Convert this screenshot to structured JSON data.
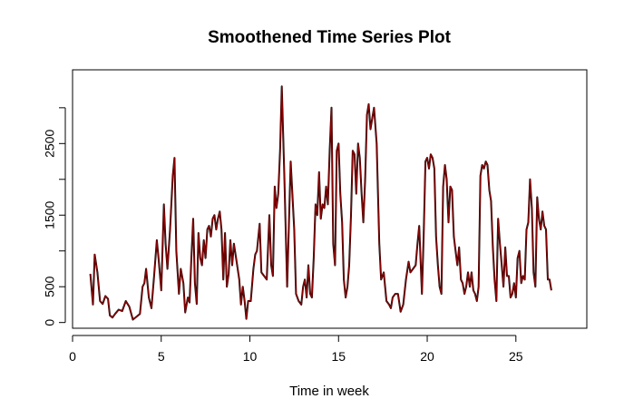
{
  "chart_data": {
    "type": "line",
    "title": "Smoothened Time Series Plot",
    "xlabel": "Time in week",
    "ylabel": "",
    "xlim": [
      0,
      29
    ],
    "ylim": [
      -80,
      3530
    ],
    "x_ticks": [
      0,
      5,
      10,
      15,
      20,
      25
    ],
    "y_ticks": [
      0,
      500,
      1500,
      2500
    ],
    "grid": false,
    "legend": "none",
    "series": [
      {
        "color_main": "#8b0000",
        "color_shadow": "#000000",
        "points": [
          [
            1.0,
            680
          ],
          [
            1.15,
            250
          ],
          [
            1.25,
            950
          ],
          [
            1.4,
            700
          ],
          [
            1.55,
            300
          ],
          [
            1.7,
            260
          ],
          [
            1.85,
            370
          ],
          [
            2.0,
            330
          ],
          [
            2.1,
            100
          ],
          [
            2.25,
            70
          ],
          [
            2.4,
            120
          ],
          [
            2.6,
            180
          ],
          [
            2.8,
            160
          ],
          [
            3.0,
            300
          ],
          [
            3.2,
            220
          ],
          [
            3.4,
            40
          ],
          [
            3.6,
            80
          ],
          [
            3.8,
            120
          ],
          [
            3.95,
            500
          ],
          [
            4.05,
            550
          ],
          [
            4.15,
            750
          ],
          [
            4.3,
            350
          ],
          [
            4.45,
            200
          ],
          [
            4.6,
            650
          ],
          [
            4.75,
            1150
          ],
          [
            4.85,
            900
          ],
          [
            5.0,
            450
          ],
          [
            5.15,
            1650
          ],
          [
            5.25,
            1100
          ],
          [
            5.35,
            750
          ],
          [
            5.5,
            1300
          ],
          [
            5.65,
            2050
          ],
          [
            5.75,
            2300
          ],
          [
            5.85,
            1000
          ],
          [
            6.0,
            400
          ],
          [
            6.1,
            750
          ],
          [
            6.25,
            550
          ],
          [
            6.35,
            140
          ],
          [
            6.5,
            350
          ],
          [
            6.6,
            280
          ],
          [
            6.7,
            900
          ],
          [
            6.8,
            1450
          ],
          [
            6.9,
            550
          ],
          [
            7.0,
            260
          ],
          [
            7.1,
            1250
          ],
          [
            7.2,
            900
          ],
          [
            7.3,
            800
          ],
          [
            7.4,
            1150
          ],
          [
            7.5,
            900
          ],
          [
            7.6,
            1300
          ],
          [
            7.7,
            1350
          ],
          [
            7.8,
            1200
          ],
          [
            7.9,
            1450
          ],
          [
            8.0,
            1500
          ],
          [
            8.1,
            1300
          ],
          [
            8.2,
            1450
          ],
          [
            8.3,
            1550
          ],
          [
            8.4,
            1300
          ],
          [
            8.5,
            600
          ],
          [
            8.6,
            1250
          ],
          [
            8.7,
            500
          ],
          [
            8.8,
            680
          ],
          [
            8.9,
            1150
          ],
          [
            9.0,
            800
          ],
          [
            9.1,
            1100
          ],
          [
            9.25,
            850
          ],
          [
            9.4,
            600
          ],
          [
            9.5,
            250
          ],
          [
            9.6,
            500
          ],
          [
            9.7,
            300
          ],
          [
            9.8,
            50
          ],
          [
            9.9,
            300
          ],
          [
            10.05,
            300
          ],
          [
            10.2,
            750
          ],
          [
            10.3,
            950
          ],
          [
            10.4,
            1000
          ],
          [
            10.55,
            1380
          ],
          [
            10.65,
            700
          ],
          [
            10.8,
            650
          ],
          [
            10.95,
            600
          ],
          [
            11.1,
            1500
          ],
          [
            11.2,
            800
          ],
          [
            11.3,
            650
          ],
          [
            11.4,
            1900
          ],
          [
            11.5,
            1600
          ],
          [
            11.6,
            1800
          ],
          [
            11.7,
            2400
          ],
          [
            11.8,
            3300
          ],
          [
            11.95,
            2000
          ],
          [
            12.1,
            500
          ],
          [
            12.3,
            2250
          ],
          [
            12.5,
            1300
          ],
          [
            12.6,
            400
          ],
          [
            12.75,
            300
          ],
          [
            12.9,
            250
          ],
          [
            13.0,
            500
          ],
          [
            13.1,
            600
          ],
          [
            13.2,
            350
          ],
          [
            13.3,
            800
          ],
          [
            13.4,
            400
          ],
          [
            13.5,
            350
          ],
          [
            13.6,
            900
          ],
          [
            13.7,
            1650
          ],
          [
            13.8,
            1500
          ],
          [
            13.9,
            2100
          ],
          [
            14.0,
            1450
          ],
          [
            14.1,
            1650
          ],
          [
            14.2,
            1600
          ],
          [
            14.3,
            1900
          ],
          [
            14.4,
            1650
          ],
          [
            14.5,
            2400
          ],
          [
            14.6,
            3000
          ],
          [
            14.7,
            1100
          ],
          [
            14.8,
            800
          ],
          [
            14.9,
            2400
          ],
          [
            15.0,
            2500
          ],
          [
            15.1,
            1800
          ],
          [
            15.2,
            1400
          ],
          [
            15.3,
            600
          ],
          [
            15.4,
            350
          ],
          [
            15.5,
            500
          ],
          [
            15.6,
            800
          ],
          [
            15.7,
            1500
          ],
          [
            15.8,
            2400
          ],
          [
            15.9,
            2350
          ],
          [
            16.0,
            1800
          ],
          [
            16.1,
            2500
          ],
          [
            16.2,
            2300
          ],
          [
            16.3,
            1800
          ],
          [
            16.4,
            1400
          ],
          [
            16.5,
            2000
          ],
          [
            16.6,
            2900
          ],
          [
            16.7,
            3050
          ],
          [
            16.8,
            2700
          ],
          [
            16.9,
            2850
          ],
          [
            17.0,
            3000
          ],
          [
            17.15,
            2500
          ],
          [
            17.3,
            1100
          ],
          [
            17.4,
            600
          ],
          [
            17.55,
            700
          ],
          [
            17.7,
            300
          ],
          [
            17.85,
            250
          ],
          [
            17.95,
            200
          ],
          [
            18.05,
            350
          ],
          [
            18.2,
            400
          ],
          [
            18.35,
            400
          ],
          [
            18.5,
            150
          ],
          [
            18.65,
            250
          ],
          [
            18.8,
            600
          ],
          [
            18.95,
            850
          ],
          [
            19.05,
            700
          ],
          [
            19.2,
            750
          ],
          [
            19.35,
            800
          ],
          [
            19.45,
            1100
          ],
          [
            19.55,
            1350
          ],
          [
            19.7,
            400
          ],
          [
            19.8,
            1200
          ],
          [
            19.9,
            2250
          ],
          [
            20.0,
            2300
          ],
          [
            20.1,
            2150
          ],
          [
            20.2,
            2350
          ],
          [
            20.3,
            2300
          ],
          [
            20.4,
            2150
          ],
          [
            20.5,
            1200
          ],
          [
            20.6,
            800
          ],
          [
            20.7,
            500
          ],
          [
            20.8,
            400
          ],
          [
            20.9,
            1900
          ],
          [
            21.0,
            2200
          ],
          [
            21.1,
            2000
          ],
          [
            21.2,
            1400
          ],
          [
            21.3,
            1900
          ],
          [
            21.4,
            1850
          ],
          [
            21.5,
            1200
          ],
          [
            21.6,
            1000
          ],
          [
            21.7,
            800
          ],
          [
            21.8,
            1050
          ],
          [
            21.9,
            600
          ],
          [
            22.0,
            550
          ],
          [
            22.1,
            400
          ],
          [
            22.2,
            500
          ],
          [
            22.3,
            700
          ],
          [
            22.4,
            500
          ],
          [
            22.5,
            700
          ],
          [
            22.6,
            450
          ],
          [
            22.7,
            400
          ],
          [
            22.8,
            300
          ],
          [
            22.9,
            500
          ],
          [
            23.0,
            2050
          ],
          [
            23.1,
            2200
          ],
          [
            23.2,
            2150
          ],
          [
            23.3,
            2250
          ],
          [
            23.4,
            2200
          ],
          [
            23.5,
            1850
          ],
          [
            23.6,
            1700
          ],
          [
            23.7,
            1050
          ],
          [
            23.8,
            600
          ],
          [
            23.9,
            300
          ],
          [
            24.0,
            1450
          ],
          [
            24.1,
            1100
          ],
          [
            24.2,
            800
          ],
          [
            24.3,
            500
          ],
          [
            24.4,
            1050
          ],
          [
            24.5,
            650
          ],
          [
            24.6,
            650
          ],
          [
            24.7,
            350
          ],
          [
            24.8,
            400
          ],
          [
            24.9,
            550
          ],
          [
            25.0,
            350
          ],
          [
            25.1,
            900
          ],
          [
            25.2,
            1000
          ],
          [
            25.3,
            550
          ],
          [
            25.4,
            650
          ],
          [
            25.5,
            600
          ],
          [
            25.6,
            1300
          ],
          [
            25.7,
            1400
          ],
          [
            25.8,
            2000
          ],
          [
            25.9,
            1600
          ],
          [
            26.0,
            700
          ],
          [
            26.1,
            500
          ],
          [
            26.2,
            1750
          ],
          [
            26.3,
            1450
          ],
          [
            26.4,
            1300
          ],
          [
            26.5,
            1550
          ],
          [
            26.6,
            1350
          ],
          [
            26.7,
            1300
          ],
          [
            26.8,
            600
          ],
          [
            26.9,
            600
          ],
          [
            27.0,
            450
          ]
        ]
      }
    ]
  }
}
